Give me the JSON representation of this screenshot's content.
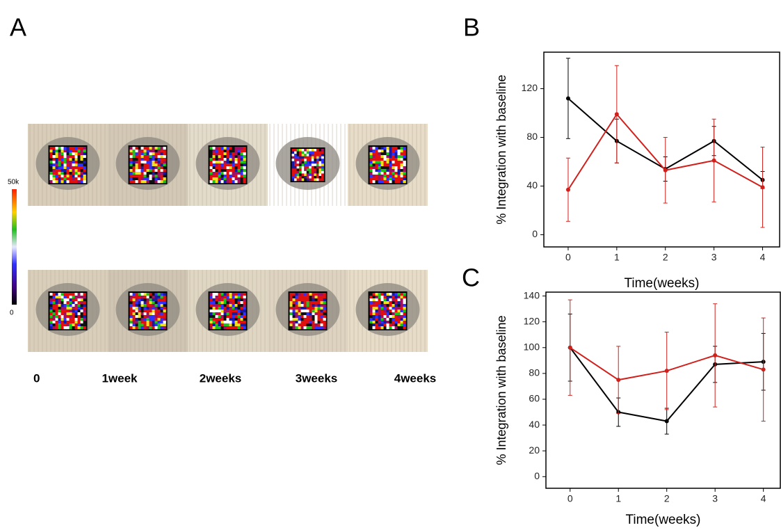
{
  "panel_a": {
    "label": "A",
    "colorbar_labels": [
      "50k",
      "0"
    ],
    "time_labels": [
      "0",
      "1week",
      "2weeks",
      "3weeks",
      "4weeks"
    ]
  },
  "chart_data": [
    {
      "type": "line",
      "panel_label": "B",
      "ylabel": "% Integration with baseline",
      "xlabel": "Time(weeks)",
      "x": [
        0,
        1,
        2,
        3,
        4
      ],
      "xlim": [
        -0.5,
        4.35
      ],
      "xticks": [
        0,
        1,
        2,
        3,
        4
      ],
      "ylim": [
        -10,
        150
      ],
      "yticks": [
        0,
        40,
        80,
        120
      ],
      "series": [
        {
          "color": "#000000",
          "values": [
            112,
            77,
            54,
            77,
            45
          ],
          "errors": [
            33,
            18,
            10,
            12,
            7
          ]
        },
        {
          "color": "#d0201c",
          "values": [
            37,
            99,
            53,
            61,
            39
          ],
          "errors": [
            26,
            40,
            27,
            34,
            33
          ]
        }
      ]
    },
    {
      "type": "line",
      "panel_label": "C",
      "ylabel": "% Integration with baseline",
      "xlabel": "Time(weeks)",
      "x": [
        0,
        1,
        2,
        3,
        4
      ],
      "xlim": [
        -0.5,
        4.35
      ],
      "xticks": [
        0,
        1,
        2,
        3,
        4
      ],
      "ylim": [
        -9,
        143
      ],
      "yticks": [
        0,
        20,
        40,
        60,
        80,
        100,
        120,
        140
      ],
      "series": [
        {
          "color": "#000000",
          "values": [
            100,
            50,
            43,
            87,
            89
          ],
          "errors": [
            26,
            11,
            10,
            14,
            22
          ]
        },
        {
          "color": "#d0201c",
          "values": [
            100,
            75,
            82,
            94,
            83
          ],
          "errors": [
            37,
            26,
            30,
            40,
            40
          ]
        }
      ]
    }
  ]
}
